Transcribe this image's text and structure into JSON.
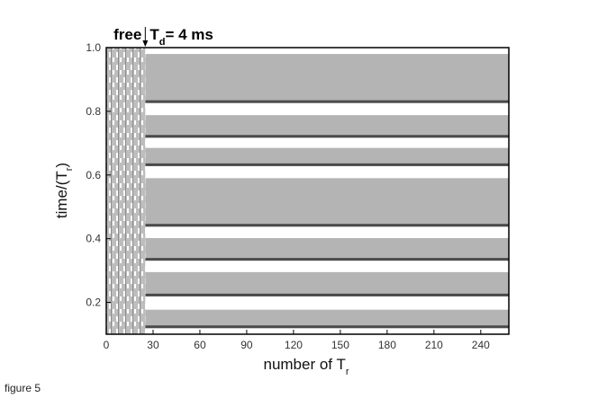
{
  "chart_data": {
    "type": "raster",
    "annotation": {
      "left": "free",
      "text": "T",
      "sub": "d",
      "rest": "= 4 ms",
      "x": 25
    },
    "xlabel": {
      "text": "number of T",
      "sub": "r"
    },
    "ylabel": {
      "text": "time/(T",
      "sub": "r",
      "close": ")"
    },
    "xlim": [
      0,
      258
    ],
    "ylim": [
      0.1,
      1
    ],
    "xticks": [
      0,
      30,
      60,
      90,
      120,
      150,
      180,
      210,
      240
    ],
    "yticks": [
      0.2,
      0.4,
      0.6,
      0.8,
      {
        "value": 1,
        "label": "1.0"
      }
    ],
    "band_color": "#b4b4b4",
    "line_color": "#4a4a4a",
    "bands": [
      {
        "low": 0.826,
        "high": 0.98
      },
      {
        "low": 0.717,
        "high": 0.788
      },
      {
        "low": 0.628,
        "high": 0.685
      },
      {
        "low": 0.438,
        "high": 0.59
      },
      {
        "low": 0.331,
        "high": 0.402
      },
      {
        "low": 0.219,
        "high": 0.295
      },
      {
        "low": 0.119,
        "high": 0.177
      }
    ]
  },
  "caption": "figure 5"
}
